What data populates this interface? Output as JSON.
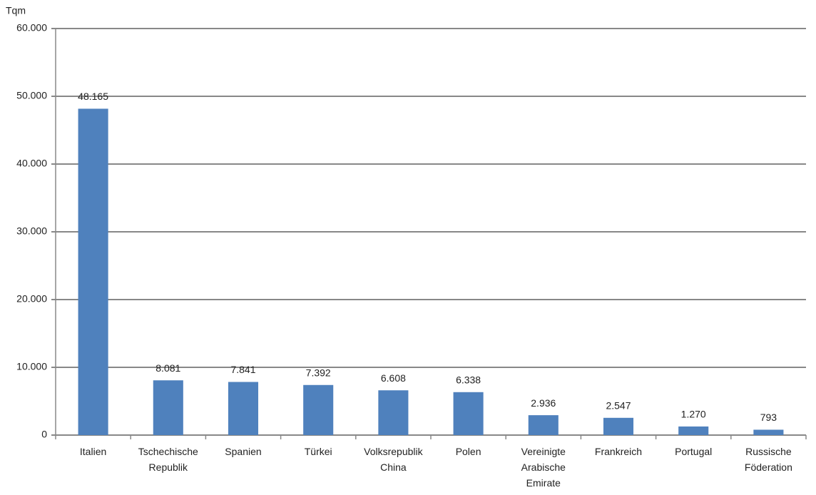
{
  "chart_data": {
    "type": "bar",
    "y_label": "Tqm",
    "categories": [
      "Italien",
      "Tschechische\nRepublik",
      "Spanien",
      "Türkei",
      "Volksrepublik\nChina",
      "Polen",
      "Vereinigte\nArabische\nEmirate",
      "Frankreich",
      "Portugal",
      "Russische\nFöderation"
    ],
    "values": [
      48165,
      8081,
      7841,
      7392,
      6608,
      6338,
      2936,
      2547,
      1270,
      793
    ],
    "value_labels": [
      "48.165",
      "8.081",
      "7.841",
      "7.392",
      "6.608",
      "6.338",
      "2.936",
      "2.547",
      "1.270",
      "793"
    ],
    "color": "#4f81bd",
    "ylim": [
      0,
      60000
    ],
    "yticks": [
      0,
      {
        "value": 10000,
        "label": "10.000"
      },
      {
        "value": 20000,
        "label": "20.000"
      },
      {
        "value": 30000,
        "label": "30.000"
      },
      {
        "value": 40000,
        "label": "40.000"
      },
      {
        "value": 50000,
        "label": "50.000"
      },
      {
        "value": 60000,
        "label": "60.000"
      }
    ],
    "grid": true
  }
}
